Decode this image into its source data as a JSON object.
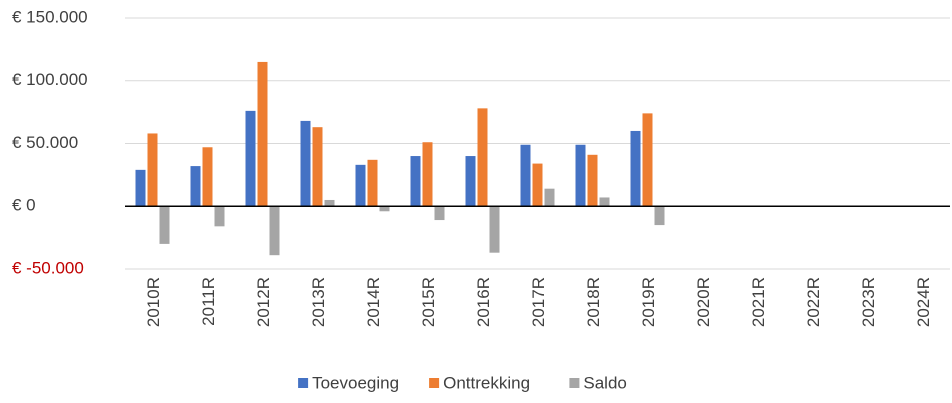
{
  "chart_data": {
    "type": "bar",
    "categories": [
      "2010R",
      "2011R",
      "2012R",
      "2013R",
      "2014R",
      "2015R",
      "2016R",
      "2017R",
      "2018R",
      "2019R",
      "2020R",
      "2021R",
      "2022R",
      "2023R",
      "2024R"
    ],
    "series": [
      {
        "name": "Toevoeging",
        "color": "#4472c4",
        "values": [
          29000,
          32000,
          76000,
          68000,
          33000,
          40000,
          40000,
          49000,
          49000,
          60000,
          null,
          null,
          null,
          null,
          null
        ]
      },
      {
        "name": "Onttrekking",
        "color": "#ed7d31",
        "values": [
          58000,
          47000,
          115000,
          63000,
          37000,
          51000,
          78000,
          34000,
          41000,
          74000,
          null,
          null,
          null,
          null,
          null
        ]
      },
      {
        "name": "Saldo",
        "color": "#a5a5a5",
        "values": [
          -30000,
          -16000,
          -39000,
          5000,
          -4000,
          -11000,
          -37000,
          14000,
          7000,
          -15000,
          null,
          null,
          null,
          null,
          null
        ]
      }
    ],
    "ylim": [
      -50000,
      150000
    ],
    "yticks": [
      {
        "value": -50000,
        "label": "€ -50.000",
        "color": "#c00000"
      },
      {
        "value": 0,
        "label": "€ 0"
      },
      {
        "value": 50000,
        "label": "€ 50.000"
      },
      {
        "value": 100000,
        "label": "€ 100.000"
      },
      {
        "value": 150000,
        "label": "€ 150.000"
      }
    ],
    "grid": true,
    "legend": "bottom"
  }
}
